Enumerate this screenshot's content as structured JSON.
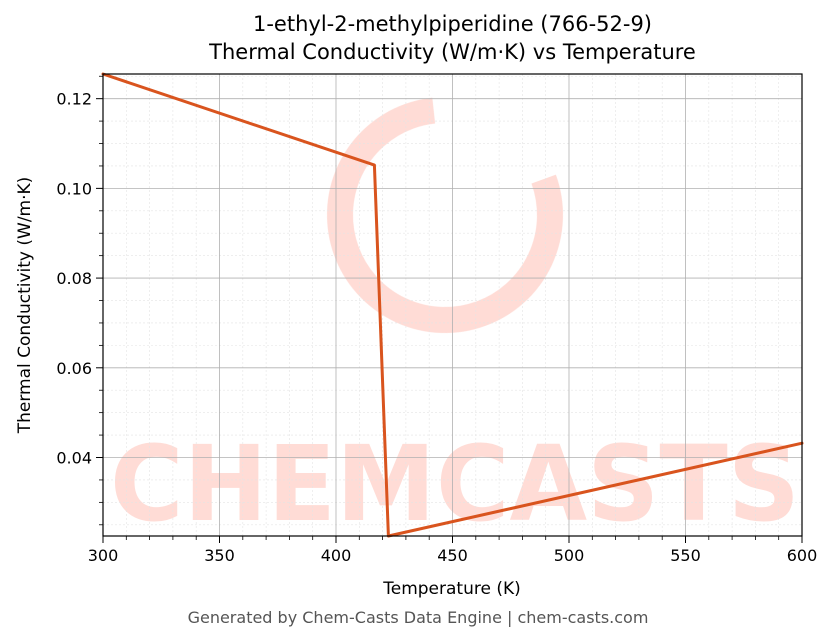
{
  "chart_data": {
    "type": "line",
    "title_line1": "1-ethyl-2-methylpiperidine (766-52-9)",
    "title_line2": "Thermal Conductivity (W/m·K) vs Temperature",
    "xlabel": "Temperature (K)",
    "ylabel": "Thermal Conductivity (W/m·K)",
    "xlim": [
      300,
      600
    ],
    "ylim": [
      0.0225,
      0.1255
    ],
    "x_ticks": [
      300,
      350,
      400,
      450,
      500,
      550,
      600
    ],
    "y_ticks": [
      0.04,
      0.06,
      0.08,
      0.1,
      0.12
    ],
    "x_tick_labels": [
      "300",
      "350",
      "400",
      "450",
      "500",
      "550",
      "600"
    ],
    "y_tick_labels": [
      "0.04",
      "0.06",
      "0.08",
      "0.10",
      "0.12"
    ],
    "grid": true,
    "series": [
      {
        "color": "#d9541e",
        "x": [
          300,
          416.5,
          422.5,
          600
        ],
        "y": [
          0.1255,
          0.1052,
          0.0225,
          0.0432
        ]
      }
    ]
  },
  "watermark": "CHEMCASTS",
  "footer": "Generated by Chem-Casts Data Engine | chem-casts.com"
}
